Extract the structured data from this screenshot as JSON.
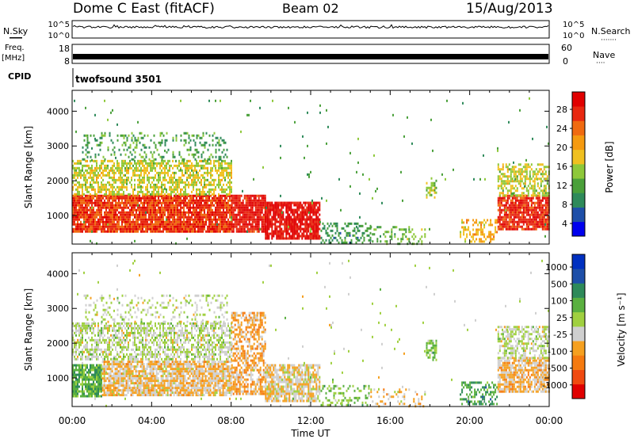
{
  "header": {
    "radar": "Dome C East (fitACF)",
    "beam": "Beam 02",
    "date": "15/Aug/2013"
  },
  "strips": {
    "nsky_label": "N.Sky",
    "nsky_ticks": [
      "10^5",
      "10^0"
    ],
    "nsearch_label": "N.Search",
    "nsearch_ticks": [
      "10^5",
      "10^0"
    ],
    "freq_label_1": "Freq.",
    "freq_label_2": "[MHz]",
    "freq_ticks": [
      "18",
      "8"
    ],
    "nave_label": "Nave",
    "nave_ticks": [
      "60",
      "0"
    ],
    "cpid_label": "CPID",
    "cpid_value": "twofsound 3501"
  },
  "colors": {
    "power": [
      "#0000ee",
      "#1e4fa8",
      "#2e8a5a",
      "#4aa03a",
      "#8ec83a",
      "#f0c020",
      "#f59a10",
      "#f06a10",
      "#e82810",
      "#e00000"
    ],
    "velocity": [
      "#e00000",
      "#f04a10",
      "#f57a10",
      "#f5a020",
      "#cfcfcf",
      "#a0d040",
      "#5ab040",
      "#2e8a5a",
      "#1e4fa8",
      "#0030c0"
    ]
  },
  "chart_data": [
    {
      "type": "heatmap",
      "name": "power",
      "xlabel": "Time UT",
      "ylabel": "Slant Range [km]",
      "xlim": [
        0,
        24
      ],
      "ylim": [
        180,
        4600
      ],
      "x_ticks": [
        "00:00",
        "04:00",
        "08:00",
        "12:00",
        "16:00",
        "20:00",
        "00:00"
      ],
      "y_ticks": [
        1000,
        2000,
        3000,
        4000
      ],
      "colorbar_label": "Power [dB]",
      "colorbar_ticks": [
        "28",
        "24",
        "20",
        "16",
        "12",
        "8",
        "4"
      ],
      "scale": [
        0,
        30
      ],
      "regions": [
        {
          "t": [
            0.0,
            8.0
          ],
          "r": [
            500,
            1600
          ],
          "v": 25,
          "dens": 0.9
        },
        {
          "t": [
            0.0,
            8.0
          ],
          "r": [
            1600,
            2600
          ],
          "v": 15,
          "dens": 0.6
        },
        {
          "t": [
            0.5,
            7.8
          ],
          "r": [
            2600,
            3400
          ],
          "v": 10,
          "dens": 0.22
        },
        {
          "t": [
            8.0,
            9.7
          ],
          "r": [
            500,
            1600
          ],
          "v": 27,
          "dens": 0.9
        },
        {
          "t": [
            9.7,
            12.5
          ],
          "r": [
            350,
            1400
          ],
          "v": 28,
          "dens": 0.85
        },
        {
          "t": [
            12.5,
            15.0
          ],
          "r": [
            200,
            800
          ],
          "v": 9,
          "dens": 0.35
        },
        {
          "t": [
            15.0,
            17.8
          ],
          "r": [
            200,
            700
          ],
          "v": 12,
          "dens": 0.22
        },
        {
          "t": [
            17.8,
            18.3
          ],
          "r": [
            1500,
            2100
          ],
          "v": 14,
          "dens": 0.5
        },
        {
          "t": [
            19.5,
            21.4
          ],
          "r": [
            250,
            900
          ],
          "v": 18,
          "dens": 0.45
        },
        {
          "t": [
            21.4,
            24.0
          ],
          "r": [
            600,
            1600
          ],
          "v": 26,
          "dens": 0.85
        },
        {
          "t": [
            21.4,
            24.0
          ],
          "r": [
            1600,
            2500
          ],
          "v": 15,
          "dens": 0.55
        },
        {
          "t": [
            0.0,
            24.0
          ],
          "r": [
            200,
            4400
          ],
          "v": 10,
          "dens": 0.008
        }
      ]
    },
    {
      "type": "heatmap",
      "name": "velocity",
      "xlabel": "Time UT",
      "ylabel": "Slant Range [km]",
      "xlim": [
        0,
        24
      ],
      "ylim": [
        180,
        4600
      ],
      "x_ticks": [
        "00:00",
        "04:00",
        "08:00",
        "12:00",
        "16:00",
        "20:00",
        "00:00"
      ],
      "y_ticks": [
        1000,
        2000,
        3000,
        4000
      ],
      "colorbar_label": "Velocity [m s⁻¹]",
      "colorbar_ticks": [
        "1000",
        "500",
        "100",
        "25",
        "-25",
        "-100",
        "-500",
        "-1000"
      ],
      "scale": [
        -1000,
        1000
      ],
      "regions": [
        {
          "t": [
            0.0,
            1.5
          ],
          "r": [
            500,
            1400
          ],
          "v": 300,
          "dens": 0.85
        },
        {
          "t": [
            1.5,
            8.0
          ],
          "r": [
            500,
            1500
          ],
          "v": -200,
          "dens": 0.85
        },
        {
          "t": [
            0.0,
            8.0
          ],
          "r": [
            1500,
            2600
          ],
          "v": 0,
          "dens": 0.6
        },
        {
          "t": [
            0.5,
            7.8
          ],
          "r": [
            2600,
            3400
          ],
          "v": 0,
          "dens": 0.2
        },
        {
          "t": [
            8.0,
            9.7
          ],
          "r": [
            500,
            2900
          ],
          "v": -300,
          "dens": 0.6
        },
        {
          "t": [
            9.7,
            12.5
          ],
          "r": [
            350,
            1400
          ],
          "v": -150,
          "dens": 0.8
        },
        {
          "t": [
            12.5,
            15.0
          ],
          "r": [
            200,
            800
          ],
          "v": 200,
          "dens": 0.3
        },
        {
          "t": [
            15.0,
            17.8
          ],
          "r": [
            200,
            700
          ],
          "v": -200,
          "dens": 0.2
        },
        {
          "t": [
            17.8,
            18.3
          ],
          "r": [
            1500,
            2100
          ],
          "v": 200,
          "dens": 0.5
        },
        {
          "t": [
            19.5,
            21.4
          ],
          "r": [
            250,
            900
          ],
          "v": 400,
          "dens": 0.45
        },
        {
          "t": [
            21.4,
            24.0
          ],
          "r": [
            600,
            1600
          ],
          "v": -250,
          "dens": 0.8
        },
        {
          "t": [
            21.4,
            24.0
          ],
          "r": [
            1600,
            2500
          ],
          "v": 0,
          "dens": 0.55
        },
        {
          "t": [
            0.0,
            24.0
          ],
          "r": [
            200,
            4400
          ],
          "v": 0,
          "dens": 0.008
        }
      ]
    }
  ]
}
